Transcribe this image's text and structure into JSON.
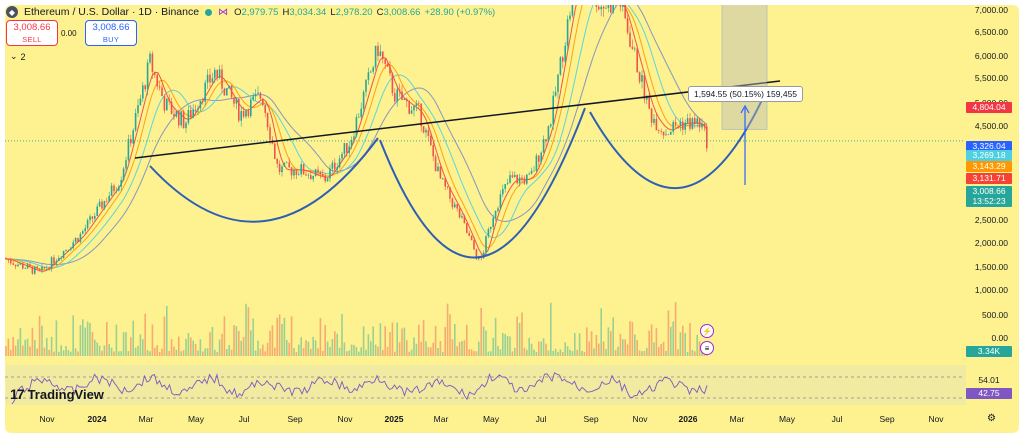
{
  "header": {
    "title": "Ethereum / U.S. Dollar · 1D · Binance",
    "ohlc": [
      {
        "label": "O",
        "value": "2,979.75"
      },
      {
        "label": "H",
        "value": "3,034.34"
      },
      {
        "label": "L",
        "value": "2,978.20"
      },
      {
        "label": "C",
        "value": "3,008.66"
      },
      {
        "label": "",
        "value": "+28.90 (+0.97%)"
      }
    ]
  },
  "trade": {
    "sell_price": "3,008.66",
    "sell_label": "SELL",
    "spread": "0.00",
    "buy_price": "3,008.66",
    "buy_label": "BUY",
    "indicators_toggle": "2"
  },
  "price_axis": {
    "ticks": [
      "7,000.00",
      "6,500.00",
      "6,000.00",
      "5,500.00",
      "5,000.00",
      "4,500.00",
      "2,500.00",
      "2,000.00",
      "1,500.00",
      "1,000.00",
      "500.00",
      "0.00"
    ],
    "tags": [
      {
        "text": "4,804.04",
        "color": "#f23645"
      },
      {
        "text": "3,326.04",
        "color": "#2962ff"
      },
      {
        "text": "3,269.18",
        "color": "#4dd0e1"
      },
      {
        "text": "3,143.29",
        "color": "#ff9800"
      },
      {
        "text": "3,131.71",
        "color": "#f44336"
      },
      {
        "text": "3,008.66",
        "color": "#26a69a"
      },
      {
        "text": "13:52:23",
        "color": "#26a69a"
      },
      {
        "text": "3.34K",
        "color": "#26a69a"
      },
      {
        "text": "54.01",
        "color": "#fdf28f"
      },
      {
        "text": "42.75",
        "color": "#7e57c2"
      }
    ]
  },
  "time_axis": [
    "Nov",
    "2024",
    "Mar",
    "May",
    "Jul",
    "Sep",
    "Nov",
    "2025",
    "Mar",
    "May",
    "Jul",
    "Sep",
    "Nov",
    "2026",
    "Mar",
    "May",
    "Jul",
    "Sep",
    "Nov"
  ],
  "measure": {
    "label": "1,594.55 (50.15%) 159,455"
  },
  "branding": {
    "logo_text": "TradingView"
  },
  "colors": {
    "background": "#fdf28f",
    "up": "#26a69a",
    "down": "#ef5350",
    "pattern": "#2f5fb5"
  },
  "chart_data": {
    "type": "line",
    "title": "Ethereum / U.S. Dollar · 1D · Binance",
    "ylim": [
      0,
      7000
    ],
    "x": [
      "Nov",
      "2024",
      "Mar",
      "May",
      "Jul",
      "Sep",
      "Nov",
      "2025",
      "Mar",
      "May",
      "Jul",
      "Sep",
      "Nov",
      "2026"
    ],
    "series": [
      {
        "name": "",
        "values": [
          1700,
          2300,
          3800,
          3100,
          3000,
          2500,
          3400,
          3300,
          2100,
          1800,
          2600,
          4600,
          3800,
          3008
        ]
      }
    ],
    "levels": [
      4804.04,
      3326.04,
      3269.18,
      3143.29,
      3131.71,
      3008.66
    ],
    "measure_change": "1,594.55 (50.15%)",
    "grid": false
  }
}
